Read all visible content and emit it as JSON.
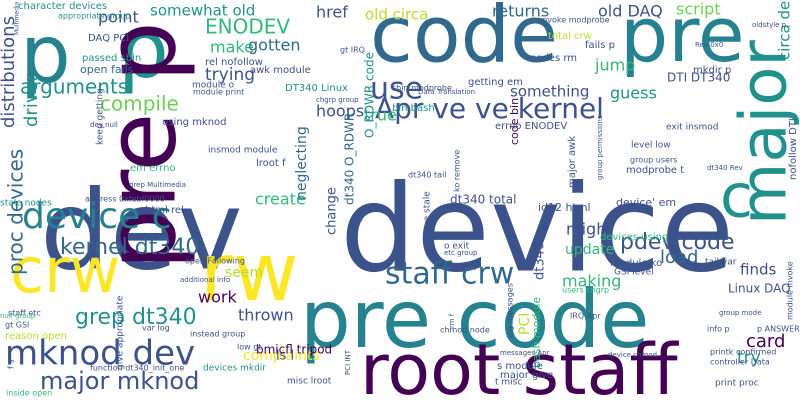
{
  "palette": {
    "dark_purple": "#440154",
    "indigo": "#3b528b",
    "blue": "#31688e",
    "teal": "#21918c",
    "teal_dark": "#26828e",
    "green": "#35b779",
    "light_green": "#6ece58",
    "lime": "#b5de2b",
    "yellow": "#fde725",
    "purple": "#482878"
  },
  "words": [
    {
      "text": "device"
    },
    {
      "text": "dev"
    },
    {
      "text": "code"
    },
    {
      "text": "pre"
    },
    {
      "text": "p"
    },
    {
      "text": "p"
    },
    {
      "text": "pre code"
    },
    {
      "text": "root staff"
    },
    {
      "text": "crw"
    },
    {
      "text": "rw"
    },
    {
      "text": "pre p"
    },
    {
      "text": "major"
    },
    {
      "text": "c"
    },
    {
      "text": "device c"
    },
    {
      "text": "mknod dev"
    },
    {
      "text": "staff crw"
    },
    {
      "text": "Apr ve ve kernel"
    },
    {
      "text": "use"
    },
    {
      "text": "major mknod"
    },
    {
      "text": "kernel dt340"
    },
    {
      "text": "pdev code"
    },
    {
      "text": "ENODEV"
    },
    {
      "text": "arguments"
    },
    {
      "text": "compile"
    },
    {
      "text": "grep dt340"
    },
    {
      "text": "proc devices"
    },
    {
      "text": "distributions"
    },
    {
      "text": "driver"
    },
    {
      "text": "point"
    },
    {
      "text": "somewhat old"
    },
    {
      "text": "returns"
    },
    {
      "text": "old DAQ"
    },
    {
      "text": "script"
    },
    {
      "text": "old circa"
    },
    {
      "text": "href"
    },
    {
      "text": "make"
    },
    {
      "text": "gotten"
    },
    {
      "text": "trying"
    },
    {
      "text": "hoops"
    },
    {
      "text": "true"
    },
    {
      "text": "jump"
    },
    {
      "text": "something"
    },
    {
      "text": "guess"
    },
    {
      "text": "circa device"
    },
    {
      "text": "load"
    },
    {
      "text": "might"
    },
    {
      "text": "update"
    },
    {
      "text": "making"
    },
    {
      "text": "finds"
    },
    {
      "text": "card"
    },
    {
      "text": "try"
    },
    {
      "text": "work"
    },
    {
      "text": "thrown"
    },
    {
      "text": "seem"
    },
    {
      "text": "create"
    },
    {
      "text": "complaints"
    },
    {
      "text": "change"
    },
    {
      "text": "neglecting"
    },
    {
      "text": "PCI"
    },
    {
      "text": "dt340"
    },
    {
      "text": "ls l"
    },
    {
      "text": "bmicfl tripod"
    },
    {
      "text": "character devices"
    },
    {
      "text": "DAQ PCI"
    },
    {
      "text": "passed sbin"
    },
    {
      "text": "open fails"
    },
    {
      "text": "rel nofollow"
    },
    {
      "text": "awk module"
    },
    {
      "text": "DT340 Linux"
    },
    {
      "text": "using mknod"
    },
    {
      "text": "insmod module"
    },
    {
      "text": "html rel"
    },
    {
      "text": "em errno"
    },
    {
      "text": "keep getting"
    },
    {
      "text": "dt340 O_RDWR"
    },
    {
      "text": "O_RDWR code"
    },
    {
      "text": "code bin"
    },
    {
      "text": "bin bash"
    },
    {
      "text": "errno ENODEV"
    },
    {
      "text": "lroot f"
    },
    {
      "text": "dt340 total"
    },
    {
      "text": "device' em"
    },
    {
      "text": "id12 html"
    },
    {
      "text": "devices using"
    },
    {
      "text": "Linux DAQ"
    },
    {
      "text": "nofollow DTI"
    },
    {
      "text": "DTI DT340"
    },
    {
      "text": "getting em"
    },
    {
      "text": "nodes rm"
    },
    {
      "text": "fails p"
    },
    {
      "text": "total crw"
    },
    {
      "text": "invoke modprobe"
    },
    {
      "text": "mkdir p"
    },
    {
      "text": "exit insmod"
    },
    {
      "text": "level low"
    },
    {
      "text": "modprobe t"
    },
    {
      "text": "stale nodes"
    },
    {
      "text": "address 0xfebf0000"
    },
    {
      "text": "GSI level"
    },
    {
      "text": "tail var"
    },
    {
      "text": "module ko"
    },
    {
      "text": "bash module"
    },
    {
      "text": "major awk"
    },
    {
      "text": "reason open"
    },
    {
      "text": "instead group"
    },
    {
      "text": "low gt"
    },
    {
      "text": "misc lroot"
    },
    {
      "text": "devices mkdir"
    },
    {
      "text": "function dt340_init_one"
    },
    {
      "text": "t misc"
    },
    {
      "text": "major give"
    },
    {
      "text": "s module"
    },
    {
      "text": "print proc"
    },
    {
      "text": "printk confirmed"
    },
    {
      "text": "controller Data"
    },
    {
      "text": "p ANSWER"
    },
    {
      "text": "info p"
    },
    {
      "text": "IRQ Apr"
    },
    {
      "text": "messages Apr"
    },
    {
      "text": "remove stale"
    },
    {
      "text": "ko remove"
    },
    {
      "text": "module o"
    },
    {
      "text": "module print"
    },
    {
      "text": "gt IRQ"
    },
    {
      "text": "chgrp group"
    },
    {
      "text": "sbin modprobe"
    },
    {
      "text": "Data Translation"
    },
    {
      "text": "group users"
    },
    {
      "text": "staff etc"
    },
    {
      "text": "null group"
    },
    {
      "text": "gt GSI"
    },
    {
      "text": "appropriate group"
    },
    {
      "text": "var log"
    },
    {
      "text": "open Following"
    },
    {
      "text": "additional info"
    },
    {
      "text": "log messages"
    },
    {
      "text": "users chgrp"
    },
    {
      "text": "chmod node"
    },
    {
      "text": "inside open"
    },
    {
      "text": "group permissions"
    },
    {
      "text": "give appropriate"
    },
    {
      "text": "device chmod"
    },
    {
      "text": "module invoke"
    },
    {
      "text": "f s"
    },
    {
      "text": "dt340 tail"
    },
    {
      "text": "o exit"
    },
    {
      "text": "etc group"
    },
    {
      "text": "Multimedia controller"
    },
    {
      "text": "grep Multimedia"
    },
    {
      "text": "PCI INT"
    },
    {
      "text": "rm f"
    },
    {
      "text": "dev null"
    },
    {
      "text": "Rev 0x0"
    },
    {
      "text": "dt340 Rev"
    },
    {
      "text": "oldstyle p"
    },
    {
      "text": "group mode"
    }
  ]
}
